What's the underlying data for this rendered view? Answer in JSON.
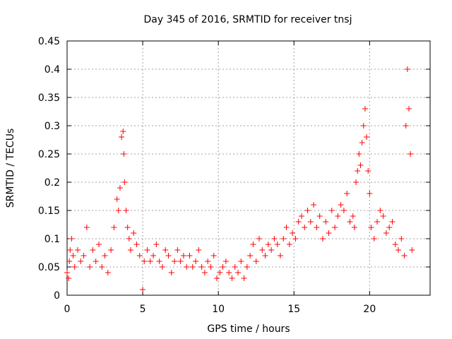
{
  "chart_data": {
    "type": "scatter",
    "title": "Day 345 of 2016, SRMTID for receiver tnsj",
    "xlabel": "GPS time / hours",
    "ylabel": "SRMTID / TECUs",
    "xlim": [
      0,
      24
    ],
    "ylim": [
      0,
      0.45
    ],
    "xticks": [
      0,
      5,
      10,
      15,
      20
    ],
    "xtick_labels": [
      "0",
      "5",
      "10",
      "15",
      "20"
    ],
    "yticks": [
      0,
      0.05,
      0.1,
      0.15,
      0.2,
      0.25,
      0.3,
      0.35,
      0.4,
      0.45
    ],
    "ytick_labels": [
      "0",
      "0.05",
      "0.1",
      "0.15",
      "0.2",
      "0.25",
      "0.3",
      "0.35",
      "0.4",
      "0.45"
    ],
    "grid": true,
    "marker": "plus",
    "color": "#ff0000",
    "series": [
      {
        "name": "SRMTID",
        "x": [
          0.0,
          0.1,
          0.15,
          0.2,
          0.3,
          0.4,
          0.5,
          0.7,
          0.9,
          1.1,
          1.3,
          1.5,
          1.7,
          1.9,
          2.1,
          2.3,
          2.5,
          2.7,
          2.9,
          3.1,
          3.3,
          3.4,
          3.5,
          3.6,
          3.7,
          3.75,
          3.8,
          3.9,
          4.0,
          4.1,
          4.2,
          4.4,
          4.6,
          4.8,
          5.0,
          5.1,
          5.3,
          5.5,
          5.7,
          5.9,
          6.1,
          6.3,
          6.5,
          6.7,
          6.9,
          7.1,
          7.3,
          7.5,
          7.7,
          7.9,
          8.1,
          8.3,
          8.5,
          8.7,
          8.9,
          9.1,
          9.3,
          9.5,
          9.7,
          9.9,
          10.1,
          10.3,
          10.5,
          10.7,
          10.9,
          11.1,
          11.3,
          11.5,
          11.7,
          11.9,
          12.1,
          12.3,
          12.5,
          12.7,
          12.9,
          13.1,
          13.3,
          13.5,
          13.7,
          13.9,
          14.1,
          14.3,
          14.5,
          14.7,
          14.9,
          15.1,
          15.3,
          15.5,
          15.7,
          15.9,
          16.1,
          16.3,
          16.5,
          16.7,
          16.9,
          17.1,
          17.3,
          17.5,
          17.7,
          17.9,
          18.1,
          18.3,
          18.5,
          18.7,
          18.9,
          19.0,
          19.1,
          19.2,
          19.3,
          19.4,
          19.5,
          19.6,
          19.7,
          19.8,
          19.9,
          20.0,
          20.1,
          20.3,
          20.5,
          20.7,
          20.9,
          21.1,
          21.3,
          21.5,
          21.7,
          21.9,
          22.1,
          22.3,
          22.4,
          22.5,
          22.6,
          22.7,
          22.8
        ],
        "y": [
          0.04,
          0.03,
          0.06,
          0.08,
          0.1,
          0.07,
          0.05,
          0.08,
          0.06,
          0.07,
          0.12,
          0.05,
          0.08,
          0.06,
          0.09,
          0.05,
          0.07,
          0.04,
          0.08,
          0.12,
          0.17,
          0.15,
          0.19,
          0.28,
          0.29,
          0.25,
          0.2,
          0.15,
          0.12,
          0.1,
          0.08,
          0.11,
          0.09,
          0.07,
          0.01,
          0.06,
          0.08,
          0.06,
          0.07,
          0.09,
          0.06,
          0.05,
          0.08,
          0.07,
          0.04,
          0.06,
          0.08,
          0.06,
          0.07,
          0.05,
          0.07,
          0.05,
          0.06,
          0.08,
          0.05,
          0.04,
          0.06,
          0.05,
          0.07,
          0.03,
          0.04,
          0.05,
          0.06,
          0.04,
          0.03,
          0.05,
          0.04,
          0.06,
          0.03,
          0.05,
          0.07,
          0.09,
          0.06,
          0.1,
          0.08,
          0.07,
          0.09,
          0.08,
          0.1,
          0.09,
          0.07,
          0.1,
          0.12,
          0.09,
          0.11,
          0.1,
          0.13,
          0.14,
          0.12,
          0.15,
          0.13,
          0.16,
          0.12,
          0.14,
          0.1,
          0.13,
          0.11,
          0.15,
          0.12,
          0.14,
          0.16,
          0.15,
          0.18,
          0.13,
          0.14,
          0.12,
          0.2,
          0.22,
          0.25,
          0.23,
          0.27,
          0.3,
          0.33,
          0.28,
          0.22,
          0.18,
          0.12,
          0.1,
          0.13,
          0.15,
          0.14,
          0.11,
          0.12,
          0.13,
          0.09,
          0.08,
          0.1,
          0.07,
          0.3,
          0.4,
          0.33,
          0.25,
          0.08
        ]
      }
    ]
  }
}
